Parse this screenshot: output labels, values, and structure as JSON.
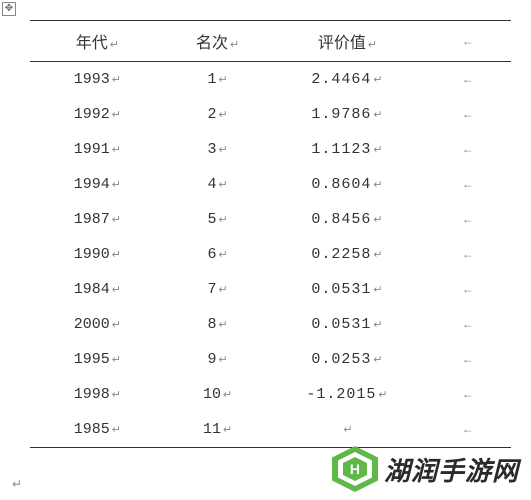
{
  "table": {
    "columns": [
      "年代",
      "名次",
      "评价值"
    ],
    "rows": [
      {
        "year": "1993",
        "rank": "1",
        "value": "2.4464"
      },
      {
        "year": "1992",
        "rank": "2",
        "value": "1.9786"
      },
      {
        "year": "1991",
        "rank": "3",
        "value": "1.1123"
      },
      {
        "year": "1994",
        "rank": "4",
        "value": "0.8604"
      },
      {
        "year": "1987",
        "rank": "5",
        "value": "0.8456"
      },
      {
        "year": "1990",
        "rank": "6",
        "value": "0.2258"
      },
      {
        "year": "1984",
        "rank": "7",
        "value": "0.0531"
      },
      {
        "year": "2000",
        "rank": "8",
        "value": "0.0531"
      },
      {
        "year": "1995",
        "rank": "9",
        "value": "0.0253"
      },
      {
        "year": "1998",
        "rank": "10",
        "value": "-1.2015"
      },
      {
        "year": "1985",
        "rank": "11",
        "value": ""
      }
    ],
    "para_mark": "↵",
    "end_mark": "←",
    "border_color": "#333333",
    "text_color": "#333333",
    "header_fontsize": 16,
    "body_fontsize": 15,
    "background_color": "#ffffff"
  },
  "watermark": {
    "logo_char": "H",
    "text": "湖润手游网",
    "logo_color": "#5fb848",
    "text_color": "#2a2a2a"
  }
}
